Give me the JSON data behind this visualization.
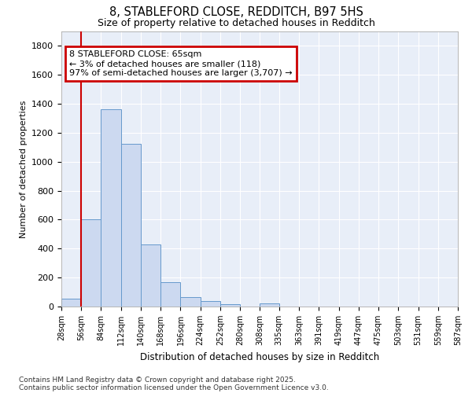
{
  "title": "8, STABLEFORD CLOSE, REDDITCH, B97 5HS",
  "subtitle": "Size of property relative to detached houses in Redditch",
  "xlabel": "Distribution of detached houses by size in Redditch",
  "ylabel": "Number of detached properties",
  "bar_color": "#ccd9f0",
  "bar_edge_color": "#6699cc",
  "background_color": "#e8eef8",
  "grid_color": "#ffffff",
  "bin_edges": [
    28,
    56,
    84,
    112,
    140,
    168,
    196,
    224,
    252,
    280,
    308,
    335,
    363,
    391,
    419,
    447,
    475,
    503,
    531,
    559,
    587
  ],
  "bin_labels": [
    "28sqm",
    "56sqm",
    "84sqm",
    "112sqm",
    "140sqm",
    "168sqm",
    "196sqm",
    "224sqm",
    "252sqm",
    "280sqm",
    "308sqm",
    "335sqm",
    "363sqm",
    "391sqm",
    "419sqm",
    "447sqm",
    "475sqm",
    "503sqm",
    "531sqm",
    "559sqm",
    "587sqm"
  ],
  "bar_heights": [
    55,
    605,
    1365,
    1125,
    430,
    170,
    65,
    38,
    15,
    0,
    20,
    0,
    0,
    0,
    0,
    0,
    0,
    0,
    0,
    0
  ],
  "vline_x": 56,
  "vline_color": "#cc0000",
  "annotation_text": "8 STABLEFORD CLOSE: 65sqm\n← 3% of detached houses are smaller (118)\n97% of semi-detached houses are larger (3,707) →",
  "annotation_box_color": "#cc0000",
  "ylim": [
    0,
    1900
  ],
  "yticks": [
    0,
    200,
    400,
    600,
    800,
    1000,
    1200,
    1400,
    1600,
    1800
  ],
  "footnote1": "Contains HM Land Registry data © Crown copyright and database right 2025.",
  "footnote2": "Contains public sector information licensed under the Open Government Licence v3.0."
}
